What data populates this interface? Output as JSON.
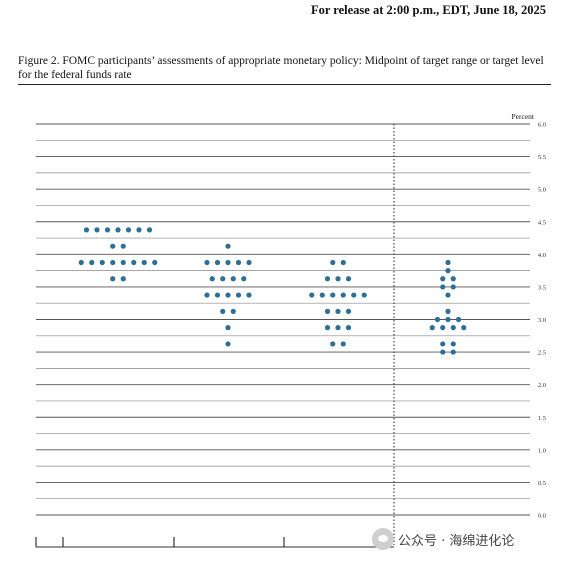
{
  "header": {
    "release_line": "For release at 2:00 p.m., EDT, June 18, 2025",
    "figure_title": "Figure 2.  FOMC participants’ assessments of appropriate monetary policy:  Midpoint of target range or target level for the federal funds rate"
  },
  "watermark": {
    "text": "公众号 · 海绵进化论",
    "icon": "wechat-icon"
  },
  "chart_data": {
    "type": "scatter",
    "unit_label": "Percent",
    "ylim": [
      0,
      6
    ],
    "ytick_labels": [
      "0.0",
      "0.5",
      "1.0",
      "1.5",
      "2.0",
      "2.5",
      "3.0",
      "3.5",
      "4.0",
      "4.5",
      "5.0",
      "5.5",
      "6.0"
    ],
    "minor_ticks": 0.25,
    "grid": true,
    "x_tick_labels": [],
    "dot_color": "#2e6f95",
    "divider": "dotted vertical line before the longer-run column",
    "columns": [
      {
        "dots": [
          {
            "y": 4.375,
            "count": 7
          },
          {
            "y": 4.125,
            "count": 2
          },
          {
            "y": 3.875,
            "count": 8
          },
          {
            "y": 3.625,
            "count": 2
          }
        ]
      },
      {
        "dots": [
          {
            "y": 4.125,
            "count": 1
          },
          {
            "y": 3.875,
            "count": 5
          },
          {
            "y": 3.625,
            "count": 4
          },
          {
            "y": 3.375,
            "count": 5
          },
          {
            "y": 3.125,
            "count": 2
          },
          {
            "y": 2.875,
            "count": 1
          },
          {
            "y": 2.625,
            "count": 1
          }
        ]
      },
      {
        "dots": [
          {
            "y": 3.875,
            "count": 2
          },
          {
            "y": 3.625,
            "count": 3
          },
          {
            "y": 3.375,
            "count": 6
          },
          {
            "y": 3.125,
            "count": 3
          },
          {
            "y": 2.875,
            "count": 3
          },
          {
            "y": 2.625,
            "count": 2
          }
        ]
      },
      {
        "dots": [
          {
            "y": 3.875,
            "count": 1
          },
          {
            "y": 3.75,
            "count": 1
          },
          {
            "y": 3.625,
            "count": 2
          },
          {
            "y": 3.5,
            "count": 2
          },
          {
            "y": 3.375,
            "count": 1
          },
          {
            "y": 3.125,
            "count": 1
          },
          {
            "y": 3.0,
            "count": 3
          },
          {
            "y": 2.875,
            "count": 4
          },
          {
            "y": 2.625,
            "count": 2
          },
          {
            "y": 2.5,
            "count": 2
          }
        ]
      }
    ]
  }
}
